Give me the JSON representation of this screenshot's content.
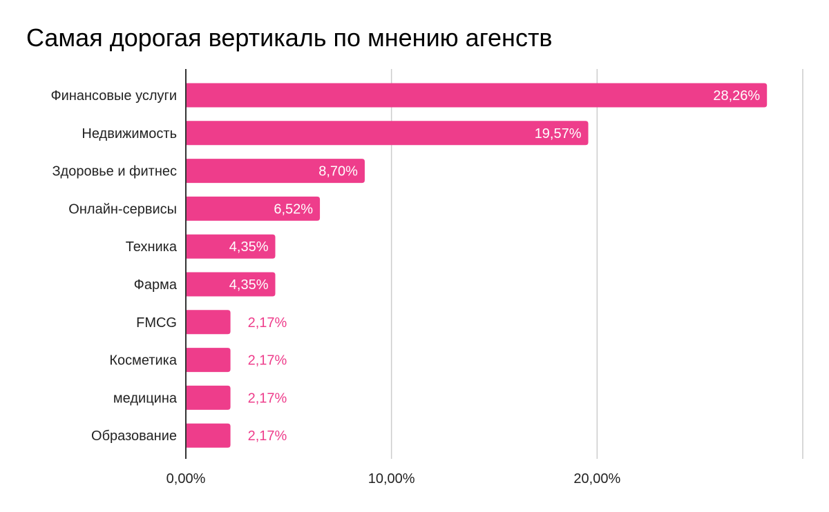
{
  "chart_data": {
    "type": "bar",
    "orientation": "horizontal",
    "title": "Самая дорогая вертикаль по мнению агенств",
    "categories": [
      "Финансовые услуги",
      "Недвижимость",
      "Здоровье и фитнес",
      "Онлайн-сервисы",
      "Техника",
      "Фарма",
      "FMCG",
      "Косметика",
      "медицина",
      "Образование"
    ],
    "values": [
      28.26,
      19.57,
      8.7,
      6.52,
      4.35,
      4.35,
      2.17,
      2.17,
      2.17,
      2.17
    ],
    "data_labels": [
      "28,26%",
      "19,57%",
      "8,70%",
      "6,52%",
      "4,35%",
      "4,35%",
      "2,17%",
      "2,17%",
      "2,17%",
      "2,17%"
    ],
    "xlim": [
      0,
      30
    ],
    "xticks": [
      0,
      10,
      20,
      30
    ],
    "xtick_labels": [
      "0,00%",
      "10,00%",
      "20,00%",
      ""
    ],
    "xlabel": "",
    "ylabel": "",
    "grid": true,
    "bar_color": "#ee3d8b"
  }
}
